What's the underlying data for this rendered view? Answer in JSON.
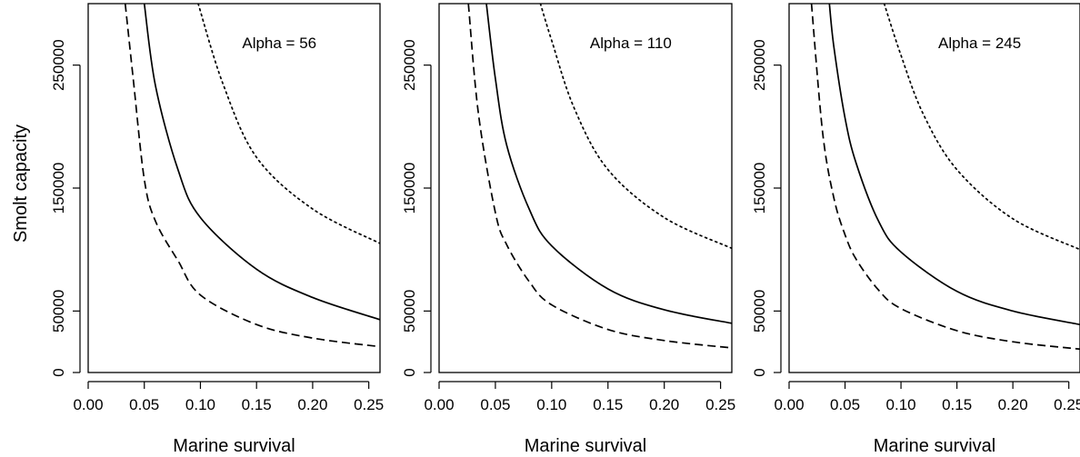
{
  "figure": {
    "shared_ylabel": "Smolt capacity"
  },
  "colors": {
    "line": "#000000",
    "background": "#ffffff"
  },
  "chart_data": [
    {
      "type": "line",
      "annotation": "Alpha = 56",
      "xlabel": "Marine survival",
      "ylabel": "Smolt capacity",
      "xlim": [
        0,
        0.26
      ],
      "ylim": [
        0,
        300000
      ],
      "xticks": [
        0.0,
        0.05,
        0.1,
        0.15,
        0.2,
        0.25
      ],
      "xtick_labels": [
        "0.00",
        "0.05",
        "0.10",
        "0.15",
        "0.20",
        "0.25"
      ],
      "yticks": [
        0,
        50000,
        150000,
        250000
      ],
      "ytick_labels": [
        "0",
        "50000",
        "150000",
        "250000"
      ],
      "grid": false,
      "series": [
        {
          "style": "dashed",
          "x": [
            0.033,
            0.04,
            0.05,
            0.06,
            0.08,
            0.1,
            0.15,
            0.2,
            0.26
          ],
          "y": [
            300000,
            240000,
            157000,
            123000,
            91000,
            63000,
            39000,
            28000,
            21000
          ]
        },
        {
          "style": "solid",
          "x": [
            0.05,
            0.06,
            0.08,
            0.1,
            0.15,
            0.2,
            0.26
          ],
          "y": [
            300000,
            233000,
            165000,
            126000,
            84000,
            61000,
            43000
          ]
        },
        {
          "style": "dotted",
          "x": [
            0.098,
            0.12,
            0.15,
            0.2,
            0.26
          ],
          "y": [
            300000,
            235000,
            175000,
            133000,
            105000
          ]
        }
      ]
    },
    {
      "type": "line",
      "annotation": "Alpha = 110",
      "xlabel": "Marine survival",
      "xlim": [
        0,
        0.26
      ],
      "ylim": [
        0,
        300000
      ],
      "xticks": [
        0.0,
        0.05,
        0.1,
        0.15,
        0.2,
        0.25
      ],
      "xtick_labels": [
        "0.00",
        "0.05",
        "0.10",
        "0.15",
        "0.20",
        "0.25"
      ],
      "yticks": [
        0,
        50000,
        150000,
        250000
      ],
      "ytick_labels": [
        "0",
        "50000",
        "150000",
        "250000"
      ],
      "grid": false,
      "series": [
        {
          "style": "dashed",
          "x": [
            0.026,
            0.035,
            0.05,
            0.06,
            0.08,
            0.1,
            0.15,
            0.2,
            0.26
          ],
          "y": [
            300000,
            210000,
            130000,
            104000,
            74000,
            55000,
            35000,
            26000,
            20000
          ]
        },
        {
          "style": "solid",
          "x": [
            0.042,
            0.05,
            0.06,
            0.08,
            0.1,
            0.15,
            0.2,
            0.26
          ],
          "y": [
            300000,
            239000,
            185000,
            133000,
            103000,
            68000,
            51000,
            40000
          ]
        },
        {
          "style": "dotted",
          "x": [
            0.09,
            0.1,
            0.12,
            0.15,
            0.2,
            0.26
          ],
          "y": [
            300000,
            270000,
            215000,
            165000,
            126000,
            101000
          ]
        }
      ]
    },
    {
      "type": "line",
      "annotation": "Alpha = 245",
      "xlabel": "Marine survival",
      "xlim": [
        0,
        0.26
      ],
      "ylim": [
        0,
        300000
      ],
      "xticks": [
        0.0,
        0.05,
        0.1,
        0.15,
        0.2,
        0.25
      ],
      "xtick_labels": [
        "0.00",
        "0.05",
        "0.10",
        "0.15",
        "0.20",
        "0.25"
      ],
      "yticks": [
        0,
        50000,
        150000,
        250000
      ],
      "ytick_labels": [
        "0",
        "50000",
        "150000",
        "250000"
      ],
      "grid": false,
      "series": [
        {
          "style": "dashed",
          "x": [
            0.02,
            0.03,
            0.04,
            0.05,
            0.06,
            0.08,
            0.1,
            0.15,
            0.2,
            0.26
          ],
          "y": [
            300000,
            195000,
            142000,
            112000,
            92000,
            67000,
            52000,
            34000,
            25000,
            19000
          ]
        },
        {
          "style": "solid",
          "x": [
            0.036,
            0.04,
            0.05,
            0.06,
            0.08,
            0.1,
            0.15,
            0.2,
            0.26
          ],
          "y": [
            300000,
            265000,
            207000,
            170000,
            123000,
            98000,
            66000,
            50000,
            39000
          ]
        },
        {
          "style": "dotted",
          "x": [
            0.085,
            0.1,
            0.12,
            0.15,
            0.2,
            0.26
          ],
          "y": [
            300000,
            258000,
            210000,
            165000,
            125000,
            100000
          ]
        }
      ]
    }
  ]
}
